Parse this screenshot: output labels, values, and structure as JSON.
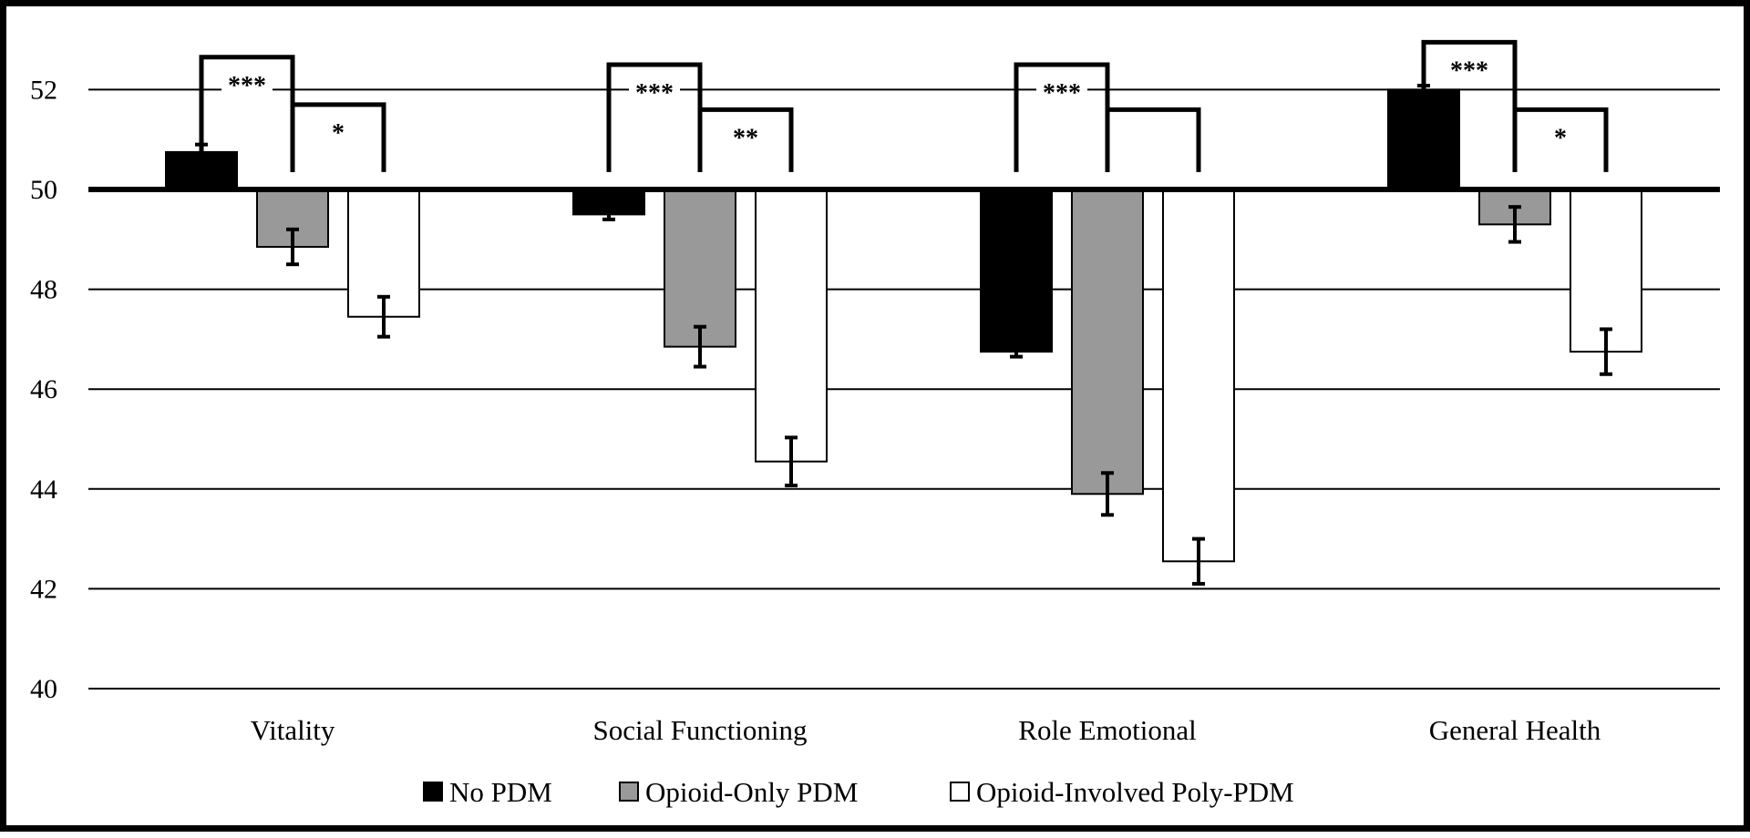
{
  "chart_data": {
    "type": "bar",
    "title": "",
    "xlabel": "",
    "ylabel": "",
    "ylim": [
      40,
      53
    ],
    "baseline": 50,
    "yticks": [
      40,
      42,
      44,
      46,
      48,
      50,
      52
    ],
    "grid": true,
    "legend_position": "bottom",
    "categories": [
      "Vitality",
      "Social Functioning",
      "Role Emotional",
      "General Health"
    ],
    "series": [
      {
        "name": "No PDM",
        "color": "#000000",
        "values": [
          50.75,
          49.5,
          46.75,
          52.0
        ],
        "errors": [
          0.15,
          0.1,
          0.1,
          0.08
        ]
      },
      {
        "name": "Opioid-Only PDM",
        "color": "#999999",
        "values": [
          48.85,
          46.85,
          43.9,
          49.3
        ],
        "errors": [
          0.35,
          0.4,
          0.42,
          0.35
        ]
      },
      {
        "name": "Opioid-Involved Poly-PDM",
        "color": "#ffffff",
        "values": [
          47.45,
          44.55,
          42.55,
          46.75
        ],
        "errors": [
          0.4,
          0.48,
          0.45,
          0.45
        ]
      }
    ],
    "annotations": [
      {
        "category": 0,
        "from": 0,
        "to": 1,
        "label": "***",
        "top": 52.65
      },
      {
        "category": 0,
        "from": 1,
        "to": 2,
        "label": "*",
        "top": 51.7
      },
      {
        "category": 1,
        "from": 0,
        "to": 1,
        "label": "***",
        "top": 52.5
      },
      {
        "category": 1,
        "from": 1,
        "to": 2,
        "label": "**",
        "top": 51.6
      },
      {
        "category": 2,
        "from": 0,
        "to": 1,
        "label": "***",
        "top": 52.5
      },
      {
        "category": 2,
        "from": 1,
        "to": 2,
        "label": "",
        "top": 51.6
      },
      {
        "category": 3,
        "from": 0,
        "to": 1,
        "label": "***",
        "top": 52.95
      },
      {
        "category": 3,
        "from": 1,
        "to": 2,
        "label": "*",
        "top": 51.6
      }
    ]
  }
}
